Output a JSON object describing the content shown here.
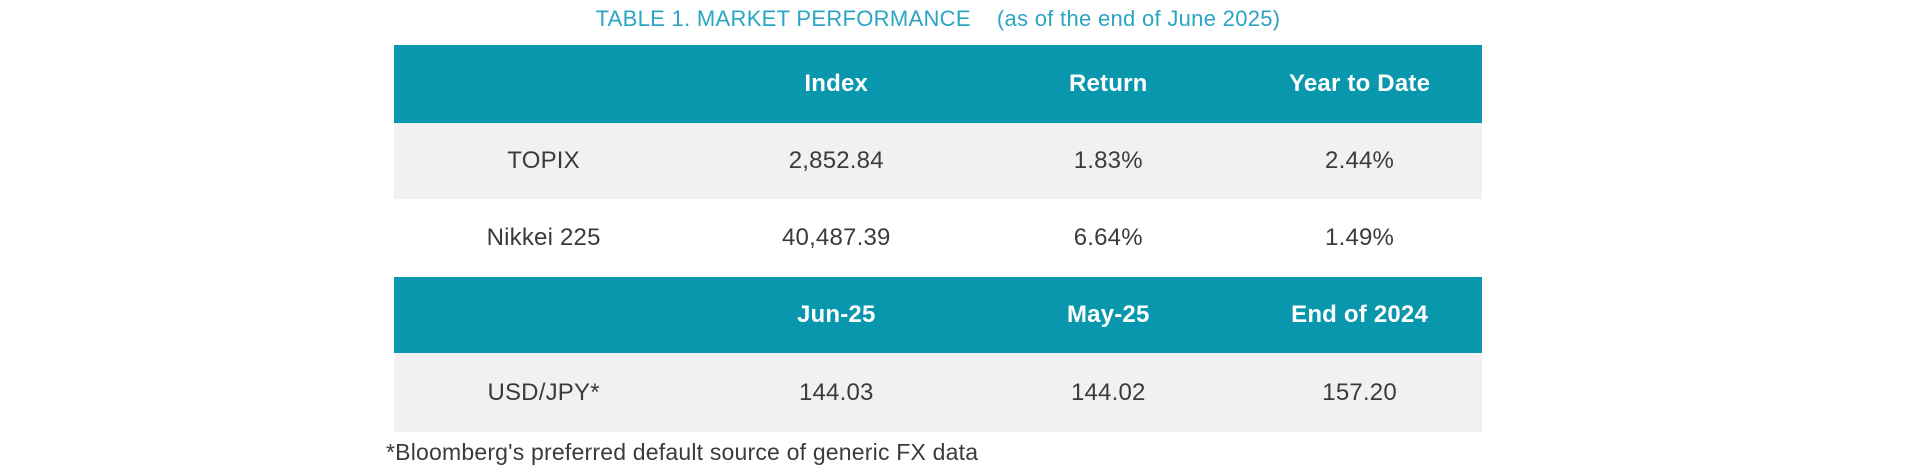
{
  "page": {
    "title_main": "TABLE 1. MARKET PERFORMANCE",
    "title_note": "(as of the end of June 2025)",
    "footnote": "*Bloomberg's preferred default source of generic FX data"
  },
  "colors": {
    "header_band_teal": "#0997AE",
    "title_cyan": "#2AA5C4",
    "row_stripe_gray": "#F1F1F2",
    "body_text": "#3B3B3B",
    "header_text": "#FFFFFF"
  },
  "index_table": {
    "headers": [
      "",
      "Index",
      "Return",
      "Year to Date"
    ],
    "rows": [
      [
        "TOPIX",
        "2,852.84",
        "1.83%",
        "2.44%"
      ],
      [
        "Nikkei 225",
        "40,487.39",
        "6.64%",
        "1.49%"
      ]
    ]
  },
  "fx_table": {
    "headers": [
      "",
      "Jun-25",
      "May-25",
      "End of 2024"
    ],
    "rows": [
      [
        "USD/JPY*",
        "144.03",
        "144.02",
        "157.20"
      ]
    ]
  }
}
